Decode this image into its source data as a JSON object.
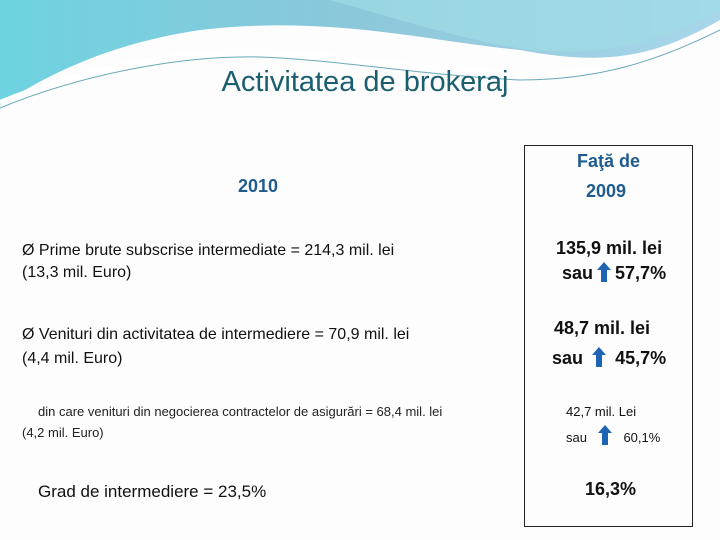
{
  "title": "Activitatea de brokeraj",
  "year_header": "2010",
  "compare_header": {
    "line1": "Faţă de",
    "line2": "2009"
  },
  "rows": [
    {
      "bullet": "Ø",
      "text": "Prime brute subscrise intermediate =   214,3 mil. lei",
      "text2": "(13,3 mil. Euro)",
      "cmp_value": "135,9 mil. lei",
      "cmp_sau": "sau",
      "cmp_pct": "57,7%"
    },
    {
      "bullet": "Ø",
      "text": "Venituri din activitatea de intermediere = 70,9 mil. lei",
      "text2": "(4,4 mil. Euro)",
      "cmp_value": "48,7 mil. lei",
      "cmp_sau": "sau",
      "cmp_pct": "45,7%"
    },
    {
      "text": "din care venituri din negocierea contractelor de asigurări = 68,4 mil. lei",
      "text2": "(4,2 mil. Euro)",
      "cmp_value": "42,7 mil. Lei",
      "cmp_sau": "sau",
      "cmp_pct": "60,1%"
    },
    {
      "text": "Grad de intermediere = 23,5%",
      "cmp_value": "16,3%"
    }
  ],
  "colors": {
    "accent": "#1f5b8f",
    "title": "#1b5e70",
    "arrow": "#1e64b4"
  }
}
